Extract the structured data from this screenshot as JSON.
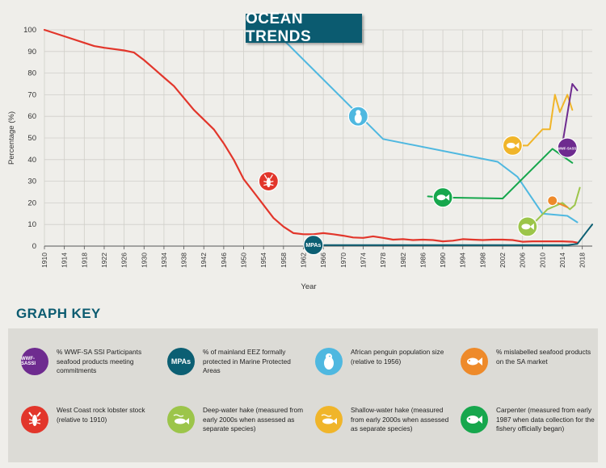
{
  "banner": "OCEAN TRENDS",
  "key_title": "GRAPH KEY",
  "colors": {
    "lobster": "#e2362b",
    "penguin": "#4fb8e0",
    "carpenter": "#17a74d",
    "shallow": "#f0b52a",
    "deep": "#9cc54a",
    "mislabel": "#ee8a2a",
    "wwf": "#6e2b8f",
    "mpa": "#0c5f73"
  },
  "chart_data": {
    "type": "line",
    "xlabel": "Year",
    "ylabel": "Percentage (%)",
    "xlim": [
      1910,
      2020
    ],
    "ylim": [
      0,
      100
    ],
    "yticks": [
      "0",
      "10",
      "20",
      "30",
      "40",
      "50",
      "60",
      "70",
      "80",
      "90",
      "100"
    ],
    "xticks": [
      "1910",
      "1914",
      "1918",
      "1922",
      "1926",
      "1930",
      "1934",
      "1938",
      "1942",
      "1946",
      "1950",
      "1954",
      "1958",
      "1962",
      "1966",
      "1970",
      "1974",
      "1978",
      "1982",
      "1986",
      "1990",
      "1994",
      "1998",
      "2002",
      "2006",
      "2010",
      "2014",
      "2018"
    ],
    "series": [
      {
        "key": "lobster",
        "x": [
          1910,
          1914,
          1918,
          1920,
          1922,
          1926,
          1928,
          1930,
          1932,
          1934,
          1936,
          1938,
          1940,
          1942,
          1944,
          1946,
          1948,
          1950,
          1952,
          1954,
          1956,
          1958,
          1960,
          1962,
          1964,
          1966,
          1968,
          1970,
          1972,
          1974,
          1976,
          1978,
          1980,
          1982,
          1984,
          1986,
          1988,
          1990,
          1992,
          1994,
          1996,
          1998,
          2000,
          2002,
          2004,
          2006,
          2008,
          2010,
          2012,
          2014,
          2016,
          2017
        ],
        "y": [
          100,
          97,
          94,
          92.5,
          91.7,
          90.5,
          89.5,
          86,
          82,
          78,
          74,
          68.5,
          63,
          58.5,
          54,
          47.5,
          40,
          31,
          25,
          19,
          13,
          9,
          6,
          5.5,
          5.5,
          6,
          5.5,
          4.8,
          4,
          3.8,
          4.5,
          3.8,
          3,
          3.2,
          2.8,
          3,
          2.8,
          2.2,
          2.5,
          3.2,
          3,
          2.8,
          3,
          3,
          2.8,
          2,
          2.2,
          2.2,
          2.2,
          2.2,
          2,
          1.6
        ]
      },
      {
        "key": "penguin",
        "x": [
          1956,
          1978,
          2001,
          2005,
          2010,
          2015,
          2017
        ],
        "y": [
          100,
          49.5,
          39,
          32,
          15,
          14,
          11
        ]
      },
      {
        "key": "carpenter",
        "x": [
          1987,
          1990,
          2002,
          2012,
          2016
        ],
        "y": [
          23,
          22.5,
          22,
          45,
          38.5
        ]
      },
      {
        "key": "shallow",
        "x": [
          2004,
          2007,
          2010,
          2011.5,
          2012.5,
          2013.5,
          2015,
          2016
        ],
        "y": [
          46.5,
          46.5,
          54,
          54,
          70,
          62,
          70,
          63
        ]
      },
      {
        "key": "deep",
        "x": [
          2008,
          2011,
          2014,
          2015.5,
          2016.5,
          2017.5
        ],
        "y": [
          10,
          17,
          20,
          17,
          19,
          27
        ]
      },
      {
        "key": "mislabel",
        "x": [
          2012,
          2015
        ],
        "y": [
          21,
          18
        ]
      },
      {
        "key": "wwf",
        "x": [
          2014,
          2016,
          2017
        ],
        "y": [
          47,
          75,
          72
        ]
      },
      {
        "key": "mpa",
        "x": [
          1964,
          2015,
          2017,
          2019,
          2020
        ],
        "y": [
          0.5,
          0.5,
          1,
          7,
          10
        ]
      }
    ],
    "markers": [
      {
        "key": "lobster",
        "x": 1955,
        "y": 30,
        "icon": "lobster"
      },
      {
        "key": "penguin",
        "x": 1973,
        "y": 60,
        "icon": "penguin"
      },
      {
        "key": "carpenter",
        "x": 1990,
        "y": 22.5,
        "icon": "fish"
      },
      {
        "key": "shallow",
        "x": 2004,
        "y": 46.5,
        "icon": "fish"
      },
      {
        "key": "deep",
        "x": 2007,
        "y": 9,
        "icon": "fish"
      },
      {
        "key": "mislabel",
        "x": 2012,
        "y": 21,
        "icon": "dot"
      },
      {
        "key": "wwf",
        "x": 2015,
        "y": 45.5,
        "icon": "text",
        "text": "WWF-SASSI"
      },
      {
        "key": "mpa",
        "x": 1964,
        "y": 0.5,
        "icon": "text",
        "text": "MPAs"
      }
    ]
  },
  "key": [
    {
      "key": "wwf",
      "icon_text": "WWF-SASSI",
      "text": "% WWF-SA SSI Participants seafood products meeting commitments"
    },
    {
      "key": "mpa",
      "icon_text": "MPAs",
      "text": "% of mainland EEZ formally protected in Marine Protected Areas"
    },
    {
      "key": "penguin",
      "icon_text": "",
      "text": "African penguin population size (relative to 1956)"
    },
    {
      "key": "mislabel",
      "icon_text": "",
      "text": "% mislabelled seafood products on the SA market"
    },
    {
      "key": "lobster",
      "icon_text": "",
      "text": "West Coast rock lobster stock (relative to 1910)"
    },
    {
      "key": "deep",
      "icon_text": "",
      "text": "Deep-water hake (measured from early 2000s when assessed as separate species)"
    },
    {
      "key": "shallow",
      "icon_text": "",
      "text": "Shallow-water hake (measured from early 2000s when assessed as separate species)"
    },
    {
      "key": "carpenter",
      "icon_text": "",
      "text": "Carpenter (measured from early 1987 when data collection for the fishery officially began)"
    }
  ]
}
